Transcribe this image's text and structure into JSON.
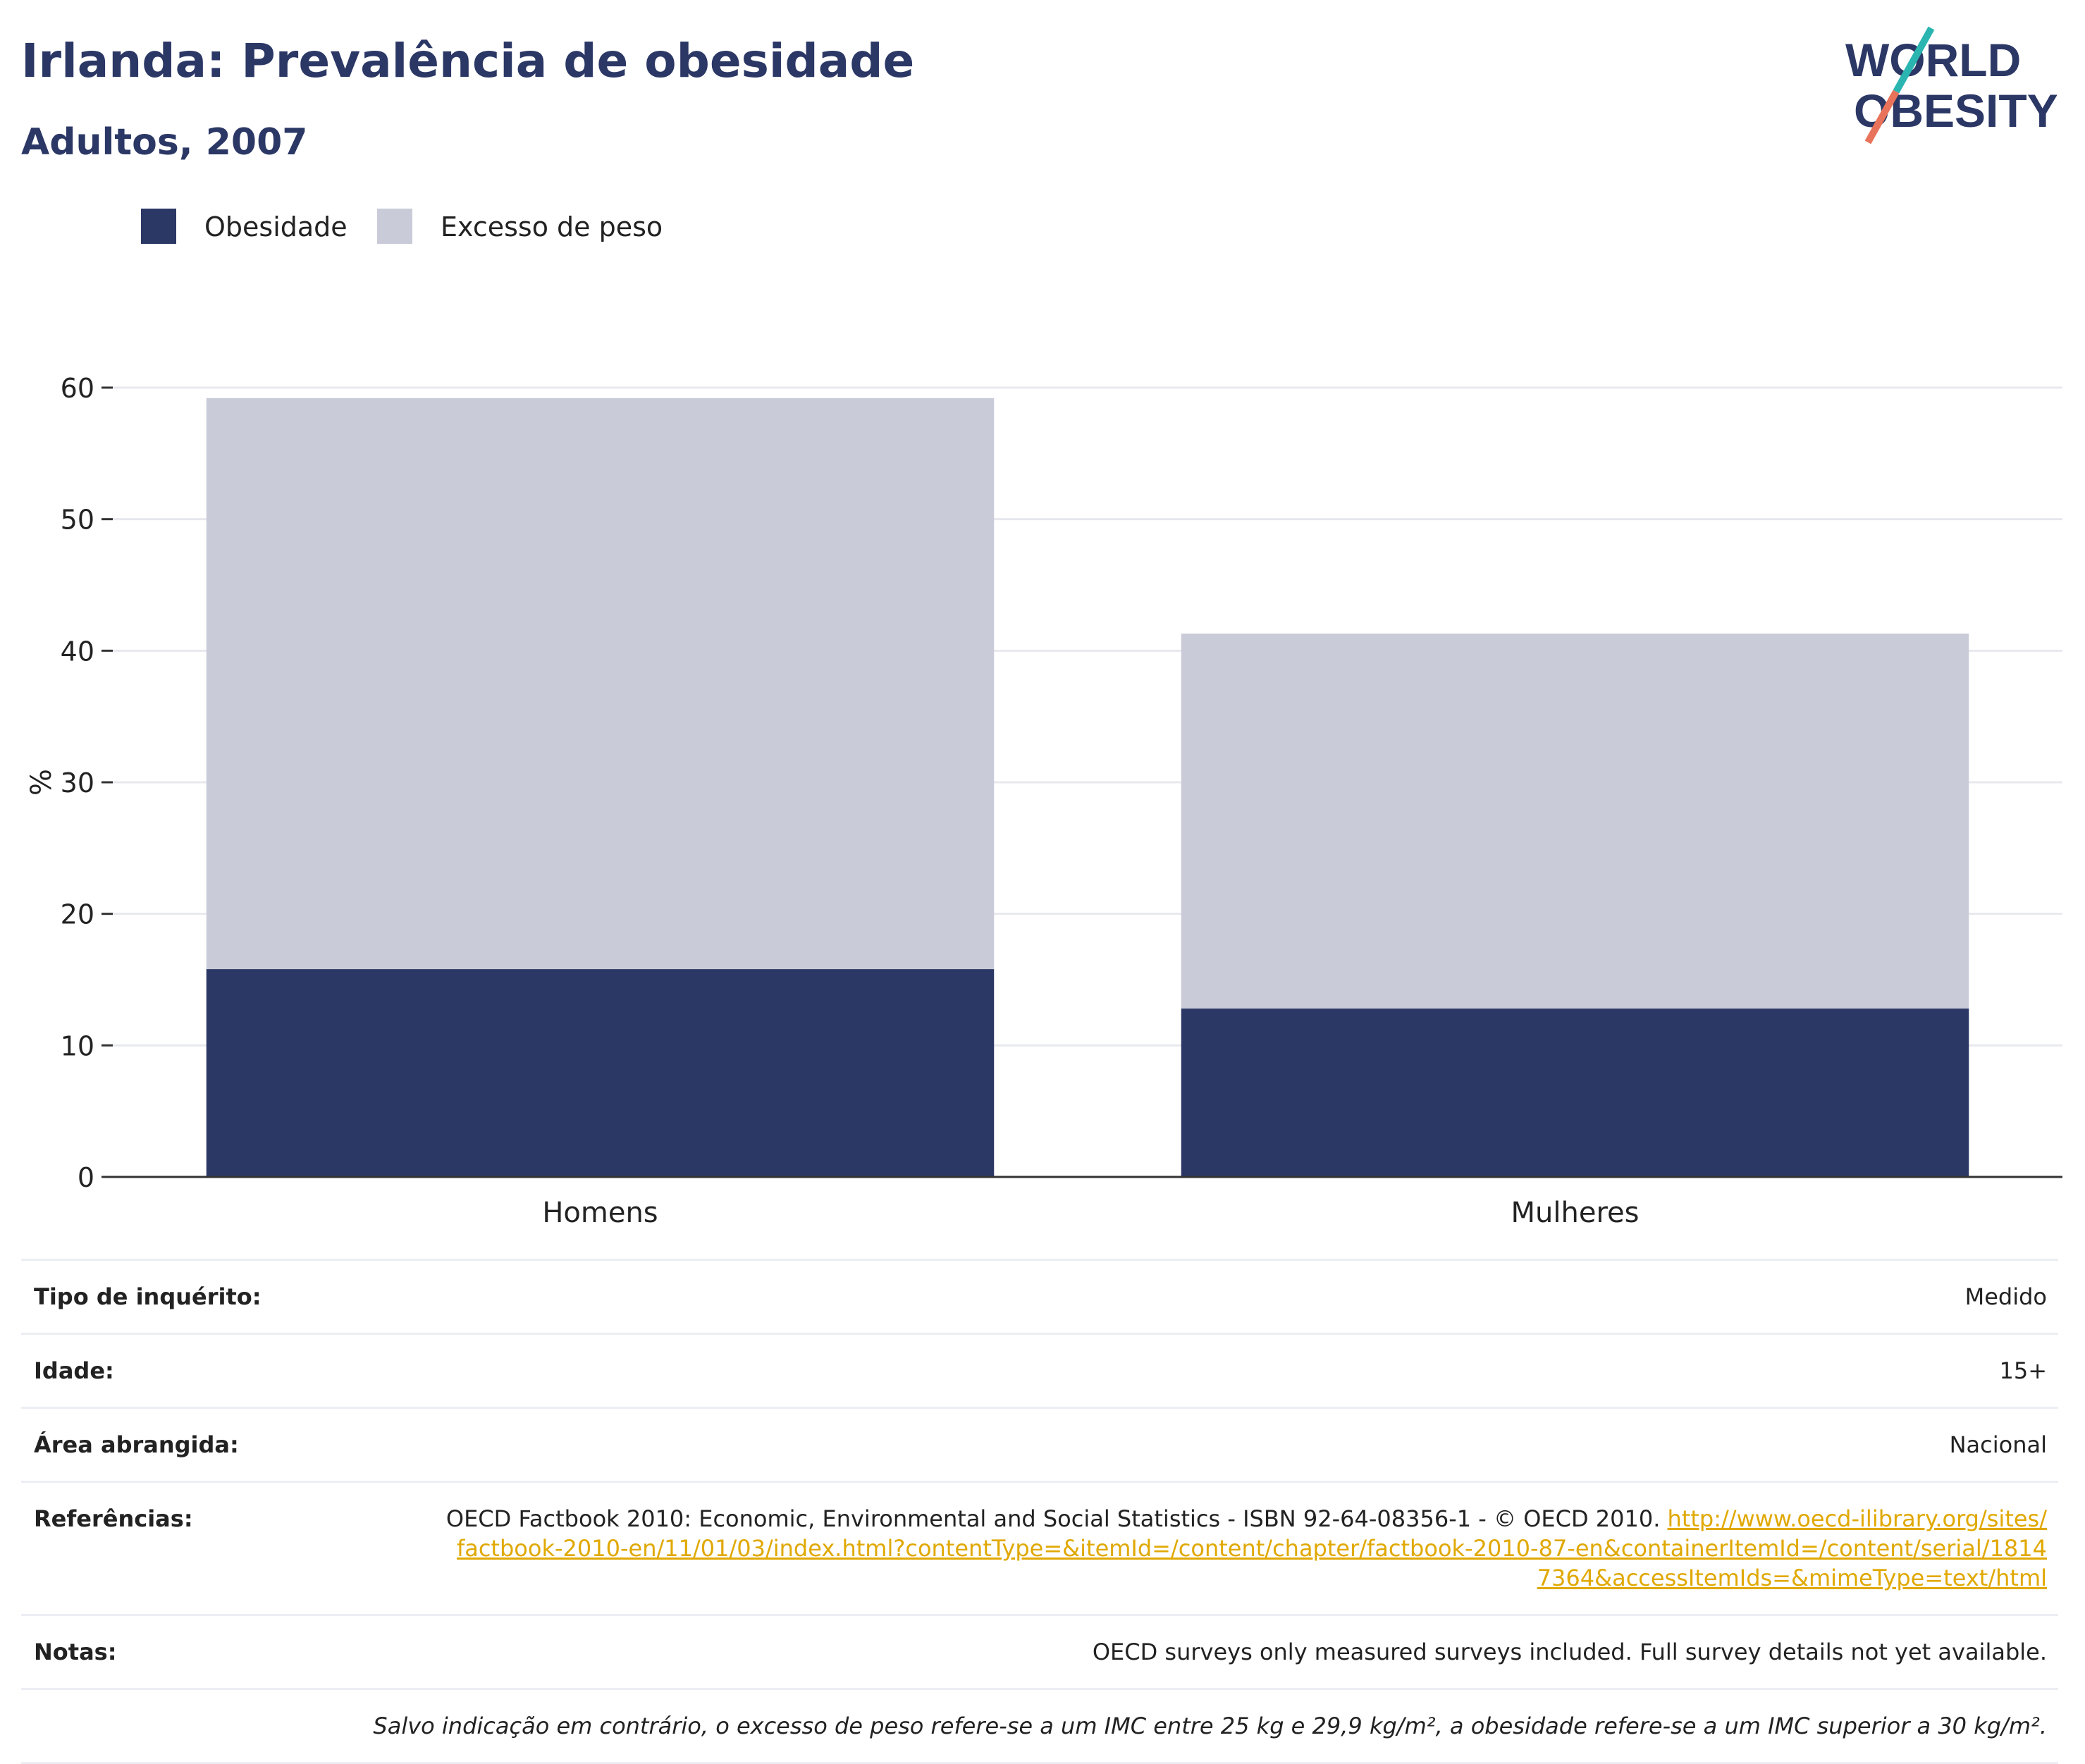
{
  "title": "Irlanda: Prevalência de obesidade",
  "subtitle": "Adultos, 2007",
  "logo": {
    "line1": "WORLD",
    "line2": "OBESITY",
    "teal": "#2bb5b0",
    "coral": "#e8735a",
    "navy": "#2b3765"
  },
  "legend": [
    {
      "label": "Obesidade",
      "color": "#2b3765"
    },
    {
      "label": "Excesso de peso",
      "color": "#c9ccd8"
    }
  ],
  "chart_data": {
    "type": "bar",
    "stacked": true,
    "categories": [
      "Homens",
      "Mulheres"
    ],
    "series": [
      {
        "name": "Obesidade",
        "values": [
          15.8,
          12.8
        ],
        "color": "#2b3765"
      },
      {
        "name": "Excesso de peso",
        "values": [
          43.4,
          28.5
        ],
        "color": "#c9ccd8"
      }
    ],
    "ylabel": "%",
    "ylim": [
      0,
      60
    ],
    "yticks": [
      0,
      10,
      20,
      30,
      40,
      50,
      60
    ],
    "grid": true,
    "legend_position": "top-left"
  },
  "meta": {
    "survey_label": "Tipo de inquérito:",
    "survey_value": "Medido",
    "age_label": "Idade:",
    "age_value": "15+",
    "area_label": "Área abrangida:",
    "area_value": "Nacional",
    "refs_label": "Referências:",
    "refs_text": "OECD Factbook 2010: Economic, Environmental and Social Statistics - ISBN 92-64-08356-1 - © OECD 2010. ",
    "refs_link": "http://www.oecd-ilibrary.org/sites/factbook-2010-en/11/01/03/index.html?contentType=&itemId=/content/chapter/factbook-2010-87-en&containerItemId=/content/serial/18147364&accessItemIds=&mimeType=text/html",
    "notes_label": "Notas:",
    "notes_value": "OECD surveys only measured surveys included. Full survey details not yet available.",
    "footnote": "Salvo indicação em contrário, o excesso de peso refere-se a um IMC entre 25 kg e 29,9 kg/m², a obesidade refere-se a um IMC superior a 30 kg/m²."
  }
}
